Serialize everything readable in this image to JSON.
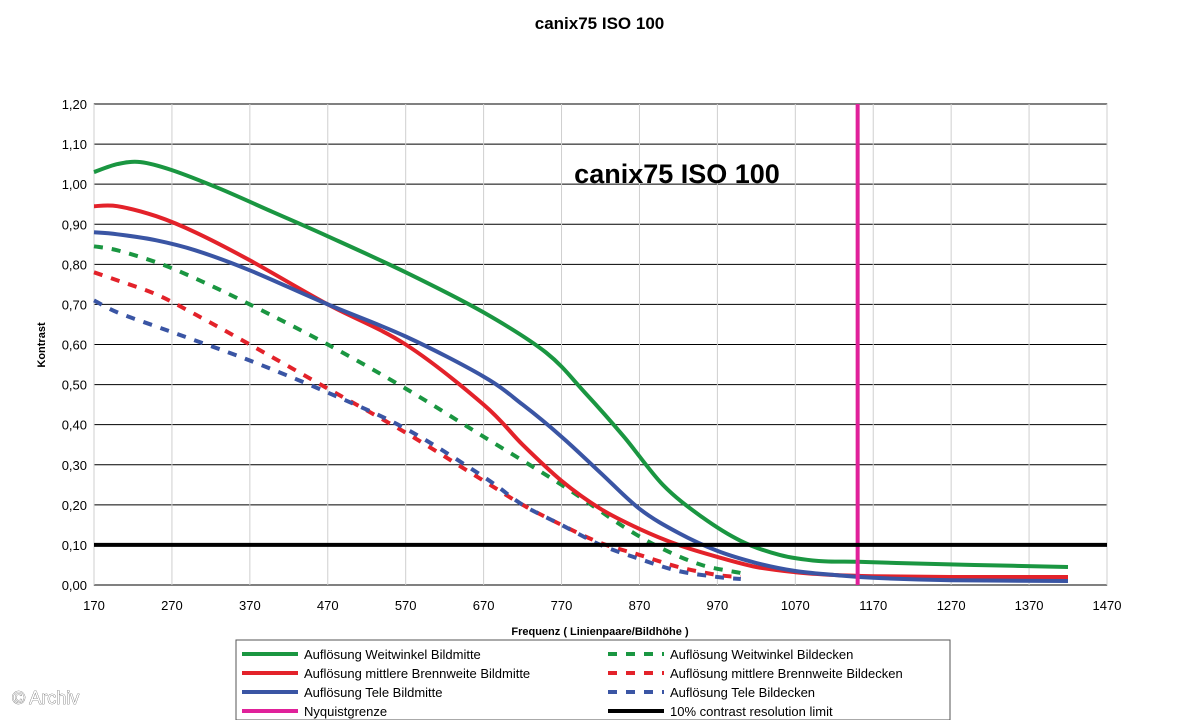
{
  "page": {
    "title": "canix75 ISO 100",
    "watermark": "© Archiv"
  },
  "chart_data": {
    "type": "line",
    "title": "canix75 ISO 100",
    "inner_title": "canix75 ISO 100",
    "xlabel": "Frequenz ( Linienpaare/Bildhöhe )",
    "ylabel": "Kontrast",
    "xlim": [
      170,
      1470
    ],
    "ylim": [
      0,
      1.2
    ],
    "x_ticks": [
      170,
      270,
      370,
      470,
      570,
      670,
      770,
      870,
      970,
      1070,
      1170,
      1270,
      1370,
      1470
    ],
    "x_tick_labels": [
      "170",
      "270",
      "370",
      "470",
      "570",
      "670",
      "770",
      "870",
      "970",
      "1070",
      "1170",
      "1270",
      "1370",
      "1470"
    ],
    "y_ticks": [
      0,
      0.1,
      0.2,
      0.3,
      0.4,
      0.5,
      0.6,
      0.7,
      0.8,
      0.9,
      1.0,
      1.1,
      1.2
    ],
    "y_tick_labels": [
      "0,00",
      "0,10",
      "0,20",
      "0,30",
      "0,40",
      "0,50",
      "0,60",
      "0,70",
      "0,80",
      "0,90",
      "1,00",
      "1,10",
      "1,20"
    ],
    "grid": "horizontal",
    "legend_position": "bottom",
    "series": [
      {
        "name": "Auflösung Weitwinkel Bildmitte",
        "color": "#1a9641",
        "dash": "solid",
        "x": [
          170,
          200,
          230,
          270,
          330,
          400,
          470,
          570,
          670,
          750,
          800,
          850,
          900,
          950,
          1000,
          1050,
          1100,
          1150,
          1200,
          1300,
          1420
        ],
        "y": [
          1.03,
          1.05,
          1.055,
          1.035,
          0.99,
          0.93,
          0.87,
          0.78,
          0.68,
          0.58,
          0.48,
          0.37,
          0.25,
          0.17,
          0.11,
          0.075,
          0.06,
          0.058,
          0.055,
          0.05,
          0.045
        ]
      },
      {
        "name": "Auflösung Weitwinkel Bildecken",
        "color": "#1a9641",
        "dash": "dashed",
        "x": [
          170,
          200,
          250,
          300,
          370,
          470,
          570,
          670,
          770,
          850,
          900,
          950,
          1000
        ],
        "y": [
          0.845,
          0.835,
          0.805,
          0.765,
          0.7,
          0.6,
          0.49,
          0.37,
          0.25,
          0.145,
          0.09,
          0.05,
          0.03
        ]
      },
      {
        "name": "Auflösung mittlere Brennweite Bildmitte",
        "color": "#e3222a",
        "dash": "solid",
        "x": [
          170,
          200,
          250,
          300,
          370,
          470,
          570,
          670,
          720,
          770,
          820,
          870,
          920,
          970,
          1020,
          1070,
          1120,
          1170,
          1270,
          1420
        ],
        "y": [
          0.945,
          0.945,
          0.92,
          0.88,
          0.81,
          0.7,
          0.6,
          0.45,
          0.35,
          0.26,
          0.19,
          0.14,
          0.1,
          0.07,
          0.045,
          0.032,
          0.025,
          0.022,
          0.02,
          0.02
        ]
      },
      {
        "name": "Auflösung mittlere Brennweite Bildecken",
        "color": "#e3222a",
        "dash": "dashed",
        "x": [
          170,
          200,
          250,
          300,
          370,
          470,
          570,
          670,
          720,
          770,
          820,
          870,
          920,
          970,
          1000
        ],
        "y": [
          0.78,
          0.76,
          0.725,
          0.675,
          0.6,
          0.49,
          0.38,
          0.26,
          0.2,
          0.15,
          0.105,
          0.075,
          0.045,
          0.025,
          0.02
        ]
      },
      {
        "name": "Auflösung Tele Bildmitte",
        "color": "#3a55a4",
        "dash": "solid",
        "x": [
          170,
          200,
          250,
          300,
          370,
          470,
          570,
          670,
          720,
          770,
          820,
          870,
          920,
          970,
          1020,
          1070,
          1120,
          1170,
          1270,
          1420
        ],
        "y": [
          0.88,
          0.875,
          0.86,
          0.835,
          0.785,
          0.7,
          0.62,
          0.52,
          0.45,
          0.37,
          0.28,
          0.19,
          0.13,
          0.085,
          0.055,
          0.035,
          0.025,
          0.018,
          0.012,
          0.01
        ]
      },
      {
        "name": "Auflösung Tele Bildecken",
        "color": "#3a55a4",
        "dash": "dashed",
        "x": [
          170,
          200,
          250,
          300,
          370,
          470,
          570,
          670,
          720,
          770,
          820,
          870,
          920,
          970,
          1000
        ],
        "y": [
          0.71,
          0.68,
          0.645,
          0.61,
          0.56,
          0.48,
          0.39,
          0.27,
          0.2,
          0.15,
          0.1,
          0.065,
          0.035,
          0.02,
          0.015
        ]
      }
    ],
    "reference_lines": [
      {
        "name": "Nyquistgrenze",
        "color": "#e0219a",
        "orientation": "vertical",
        "value": 1150
      },
      {
        "name": "10% contrast resolution limit",
        "color": "#000000",
        "orientation": "horizontal",
        "value": 0.1
      }
    ],
    "legend": [
      {
        "label": "Auflösung Weitwinkel Bildmitte",
        "color": "#1a9641",
        "dash": "solid"
      },
      {
        "label": "Auflösung Weitwinkel Bildecken",
        "color": "#1a9641",
        "dash": "dashed"
      },
      {
        "label": "Auflösung mittlere Brennweite Bildmitte",
        "color": "#e3222a",
        "dash": "solid"
      },
      {
        "label": "Auflösung mittlere Brennweite Bildecken",
        "color": "#e3222a",
        "dash": "dashed"
      },
      {
        "label": "Auflösung Tele Bildmitte",
        "color": "#3a55a4",
        "dash": "solid"
      },
      {
        "label": "Auflösung Tele Bildecken",
        "color": "#3a55a4",
        "dash": "dashed"
      },
      {
        "label": "Nyquistgrenze",
        "color": "#e0219a",
        "dash": "solid"
      },
      {
        "label": "10% contrast resolution limit",
        "color": "#000000",
        "dash": "solid"
      }
    ]
  }
}
